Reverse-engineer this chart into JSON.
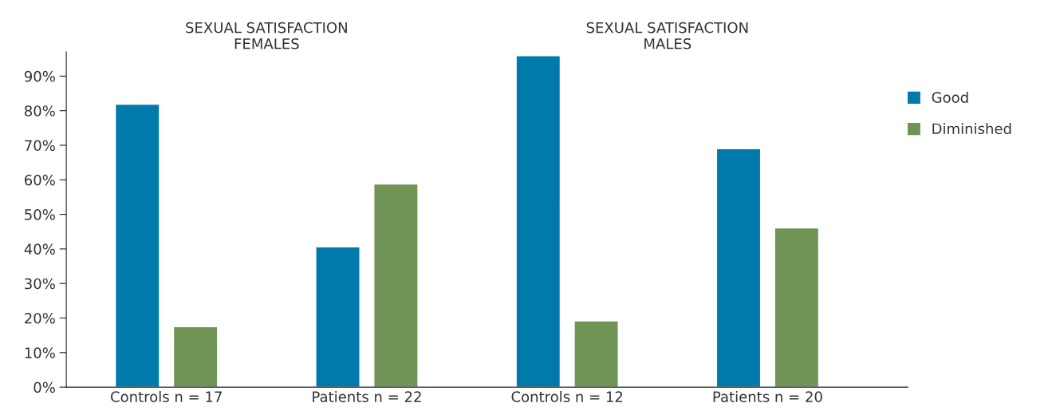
{
  "chart_data": {
    "type": "bar",
    "categories": [
      "Controls n = 17",
      "Patients n = 22",
      "Controls n = 12",
      "Patients n = 20"
    ],
    "series": [
      {
        "name": "Good",
        "color": "#007aab",
        "values": [
          81.9,
          40.6,
          95.9,
          69.0
        ]
      },
      {
        "name": "Diminished",
        "color": "#6f9455",
        "values": [
          17.5,
          58.8,
          19.2,
          46.1
        ]
      }
    ],
    "ylim": [
      0,
      97
    ],
    "yticks": [
      {
        "value": 0,
        "label": "0%"
      },
      {
        "value": 10,
        "label": "10%"
      },
      {
        "value": 20,
        "label": "20%"
      },
      {
        "value": 30,
        "label": "30%"
      },
      {
        "value": 40,
        "label": "40%"
      },
      {
        "value": 50,
        "label": "50%"
      },
      {
        "value": 60,
        "label": "60%"
      },
      {
        "value": 70,
        "label": "70%"
      },
      {
        "value": 80,
        "label": "80%"
      },
      {
        "value": 90,
        "label": "90%"
      }
    ],
    "annotations": [
      "SEXUAL SATISFACTION\nFEMALES",
      "SEXUAL SATISFACTION\nMALES"
    ],
    "grid": false,
    "legend": "top right"
  }
}
